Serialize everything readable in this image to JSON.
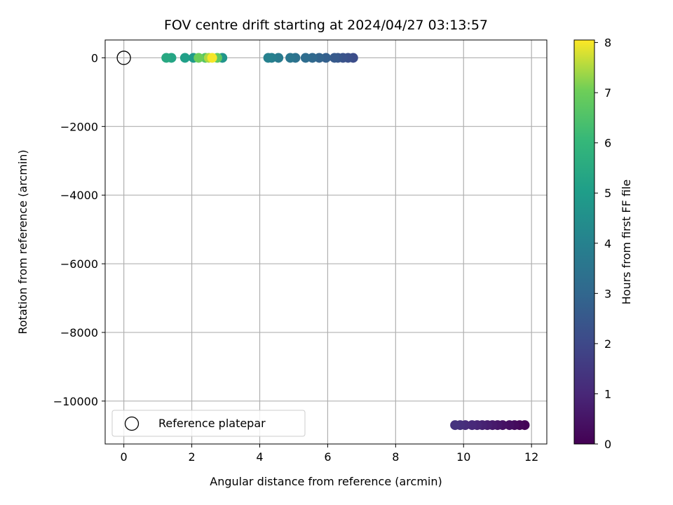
{
  "chart_data": {
    "type": "scatter",
    "title": "FOV centre drift starting at 2024/04/27 03:13:57",
    "xlabel": "Angular distance from reference (arcmin)",
    "ylabel": "Rotation from reference (arcmin)",
    "xlim": [
      -0.55,
      12.45
    ],
    "ylim": [
      -11250,
      520
    ],
    "xticks": [
      0,
      2,
      4,
      6,
      8,
      10,
      12
    ],
    "xtick_labels": [
      "0",
      "2",
      "4",
      "6",
      "8",
      "10",
      "12"
    ],
    "yticks": [
      0,
      -2000,
      -4000,
      -6000,
      -8000,
      -10000
    ],
    "ytick_labels": [
      "0",
      "−2000",
      "−4000",
      "−6000",
      "−8000",
      "−10000"
    ],
    "grid": true,
    "colormap": "viridis",
    "colorbar": {
      "label": "Hours from first FF file",
      "range": [
        0,
        8.05
      ],
      "ticks": [
        0,
        1,
        2,
        3,
        4,
        5,
        6,
        7,
        8
      ],
      "tick_labels": [
        "0",
        "1",
        "2",
        "3",
        "4",
        "5",
        "6",
        "7",
        "8"
      ]
    },
    "legend": {
      "placement": "lower-left",
      "entries": [
        {
          "label": "Reference platepar",
          "marker": "open-circle"
        }
      ]
    },
    "reference_point": {
      "x": 0,
      "y": 0
    },
    "series": [
      {
        "points": [
          {
            "x": 11.8,
            "y": -10700,
            "c": 0.05
          },
          {
            "x": 11.65,
            "y": -10700,
            "c": 0.15
          },
          {
            "x": 11.5,
            "y": -10700,
            "c": 0.25
          },
          {
            "x": 11.35,
            "y": -10700,
            "c": 0.35
          },
          {
            "x": 11.15,
            "y": -10700,
            "c": 0.45
          },
          {
            "x": 11.0,
            "y": -10700,
            "c": 0.55
          },
          {
            "x": 10.85,
            "y": -10700,
            "c": 0.65
          },
          {
            "x": 10.7,
            "y": -10700,
            "c": 0.75
          },
          {
            "x": 10.55,
            "y": -10700,
            "c": 0.85
          },
          {
            "x": 10.4,
            "y": -10700,
            "c": 0.95
          },
          {
            "x": 10.25,
            "y": -10700,
            "c": 1.05
          },
          {
            "x": 10.05,
            "y": -10700,
            "c": 1.15
          },
          {
            "x": 9.9,
            "y": -10700,
            "c": 1.25
          },
          {
            "x": 9.75,
            "y": -10700,
            "c": 1.35
          },
          {
            "x": 6.75,
            "y": 0,
            "c": 2.15
          },
          {
            "x": 6.6,
            "y": 0,
            "c": 2.25
          },
          {
            "x": 6.45,
            "y": 0,
            "c": 2.35
          },
          {
            "x": 6.3,
            "y": 0,
            "c": 2.45
          },
          {
            "x": 6.2,
            "y": 0,
            "c": 2.55
          },
          {
            "x": 5.95,
            "y": 0,
            "c": 2.75
          },
          {
            "x": 5.75,
            "y": 0,
            "c": 2.9
          },
          {
            "x": 5.55,
            "y": 0,
            "c": 3.05
          },
          {
            "x": 5.35,
            "y": 0,
            "c": 3.2
          },
          {
            "x": 5.05,
            "y": 0,
            "c": 3.4
          },
          {
            "x": 4.9,
            "y": 0,
            "c": 3.55
          },
          {
            "x": 4.55,
            "y": 0,
            "c": 3.75
          },
          {
            "x": 4.35,
            "y": 0,
            "c": 3.9
          },
          {
            "x": 4.25,
            "y": 0,
            "c": 4.0
          },
          {
            "x": 2.9,
            "y": 0,
            "c": 4.7
          },
          {
            "x": 2.05,
            "y": 0,
            "c": 4.9
          },
          {
            "x": 1.8,
            "y": 0,
            "c": 5.1
          },
          {
            "x": 1.4,
            "y": 0,
            "c": 5.3
          },
          {
            "x": 1.25,
            "y": 0,
            "c": 5.45
          },
          {
            "x": 2.4,
            "y": 0,
            "c": 6.6
          },
          {
            "x": 2.75,
            "y": 0,
            "c": 6.8
          },
          {
            "x": 2.2,
            "y": 0,
            "c": 7.0
          },
          {
            "x": 2.5,
            "y": 0,
            "c": 7.5
          },
          {
            "x": 2.6,
            "y": 0,
            "c": 8.0
          }
        ]
      }
    ]
  }
}
